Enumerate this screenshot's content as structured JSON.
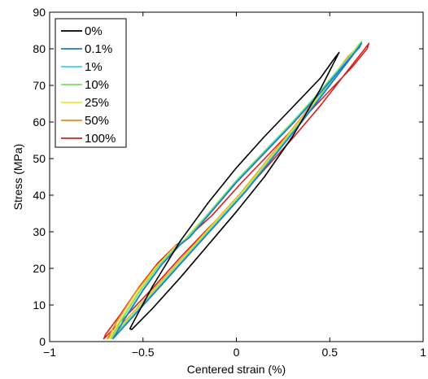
{
  "chart_data": {
    "type": "line",
    "title": "",
    "xlabel": "Centered strain (%)",
    "ylabel": "Stress (MPa)",
    "xlim": [
      -1,
      1
    ],
    "ylim": [
      0,
      90
    ],
    "xticks": [
      -1,
      -0.5,
      0,
      0.5,
      1
    ],
    "xtick_labels": [
      "−1",
      "−0.5",
      "0",
      "0.5",
      "1"
    ],
    "yticks": [
      0,
      10,
      20,
      30,
      40,
      50,
      60,
      70,
      80,
      90
    ],
    "ytick_labels": [
      "0",
      "10",
      "20",
      "30",
      "40",
      "50",
      "60",
      "70",
      "80",
      "90"
    ],
    "grid": false,
    "legend_position": "top-left",
    "series": [
      {
        "name": "0%",
        "color": "#000000",
        "x": [
          -0.56,
          -0.45,
          -0.3,
          -0.15,
          0.0,
          0.15,
          0.3,
          0.45,
          0.54,
          0.55,
          0.52,
          0.45,
          0.3,
          0.15,
          0.0,
          -0.15,
          -0.3,
          -0.45,
          -0.55,
          -0.57,
          -0.56
        ],
        "y": [
          3.3,
          9.0,
          17.5,
          26.5,
          35.5,
          45.0,
          56.0,
          69.0,
          78.0,
          79.0,
          77.0,
          72.0,
          64.0,
          56.0,
          47.5,
          38.0,
          27.5,
          15.0,
          5.5,
          3.5,
          3.3
        ]
      },
      {
        "name": "0.1%",
        "color": "#1f77d4",
        "x": [
          -0.66,
          -0.55,
          -0.4,
          -0.25,
          -0.1,
          0.05,
          0.2,
          0.35,
          0.5,
          0.62,
          0.67,
          0.66,
          0.6,
          0.45,
          0.3,
          0.15,
          0.0,
          -0.15,
          -0.25,
          -0.3,
          -0.4,
          -0.5,
          -0.6,
          -0.66
        ],
        "y": [
          0.8,
          7.0,
          15.5,
          24.0,
          32.5,
          41.0,
          50.5,
          60.0,
          70.0,
          78.0,
          81.5,
          80.5,
          77.0,
          68.0,
          59.5,
          51.5,
          43.5,
          34.5,
          28.5,
          26.5,
          21.0,
          14.0,
          6.0,
          0.8
        ]
      },
      {
        "name": "1%",
        "color": "#34d8e6",
        "x": [
          -0.66,
          -0.55,
          -0.4,
          -0.25,
          -0.1,
          0.05,
          0.2,
          0.35,
          0.5,
          0.62,
          0.67,
          0.66,
          0.6,
          0.45,
          0.3,
          0.15,
          0.0,
          -0.15,
          -0.25,
          -0.3,
          -0.4,
          -0.5,
          -0.6,
          -0.66
        ],
        "y": [
          0.8,
          7.2,
          15.7,
          24.2,
          32.7,
          41.2,
          50.7,
          60.2,
          70.2,
          78.2,
          81.7,
          80.7,
          77.2,
          68.2,
          59.7,
          51.7,
          43.7,
          34.7,
          28.7,
          26.7,
          21.2,
          14.2,
          6.2,
          0.8
        ]
      },
      {
        "name": "10%",
        "color": "#7fe05a",
        "x": [
          -0.67,
          -0.55,
          -0.4,
          -0.25,
          -0.1,
          0.05,
          0.2,
          0.35,
          0.5,
          0.62,
          0.67,
          0.66,
          0.6,
          0.45,
          0.3,
          0.15,
          0.0,
          -0.15,
          -0.27,
          -0.32,
          -0.42,
          -0.52,
          -0.62,
          -0.67
        ],
        "y": [
          0.8,
          7.5,
          16.0,
          24.5,
          33.0,
          41.5,
          51.0,
          60.5,
          70.5,
          78.5,
          82.0,
          81.0,
          77.5,
          68.5,
          60.0,
          52.0,
          44.0,
          35.0,
          28.0,
          26.0,
          20.5,
          13.5,
          5.5,
          0.8
        ]
      },
      {
        "name": "25%",
        "color": "#e8e83a",
        "x": [
          -0.68,
          -0.56,
          -0.41,
          -0.26,
          -0.11,
          0.04,
          0.19,
          0.34,
          0.49,
          0.61,
          0.66,
          0.65,
          0.59,
          0.44,
          0.29,
          0.14,
          -0.01,
          -0.16,
          -0.28,
          -0.33,
          -0.43,
          -0.53,
          -0.63,
          -0.68
        ],
        "y": [
          0.8,
          7.3,
          15.8,
          24.3,
          32.8,
          41.3,
          50.8,
          60.3,
          70.3,
          78.3,
          81.5,
          80.5,
          77.0,
          68.0,
          59.5,
          51.5,
          43.5,
          34.5,
          27.8,
          25.8,
          20.3,
          13.3,
          5.3,
          0.8
        ]
      },
      {
        "name": "50%",
        "color": "#f08a1c",
        "x": [
          -0.69,
          -0.57,
          -0.42,
          -0.27,
          -0.12,
          0.03,
          0.18,
          0.33,
          0.48,
          0.6,
          0.67,
          0.66,
          0.6,
          0.45,
          0.3,
          0.15,
          0.0,
          -0.15,
          -0.28,
          -0.33,
          -0.43,
          -0.54,
          -0.64,
          -0.69
        ],
        "y": [
          0.8,
          7.0,
          15.5,
          24.0,
          32.5,
          41.0,
          50.5,
          60.0,
          70.0,
          78.0,
          81.5,
          80.5,
          77.0,
          68.0,
          59.5,
          51.5,
          43.5,
          34.5,
          27.5,
          25.8,
          20.5,
          13.5,
          5.5,
          0.8
        ]
      },
      {
        "name": "100%",
        "color": "#d42020",
        "x": [
          -0.71,
          -0.6,
          -0.45,
          -0.3,
          -0.15,
          0.0,
          0.15,
          0.3,
          0.45,
          0.58,
          0.68,
          0.71,
          0.7,
          0.62,
          0.47,
          0.32,
          0.17,
          0.02,
          -0.13,
          -0.27,
          -0.32,
          -0.42,
          -0.52,
          -0.62,
          -0.7,
          -0.71
        ],
        "y": [
          0.8,
          6.5,
          14.5,
          23.0,
          31.0,
          38.5,
          47.0,
          55.5,
          64.5,
          73.0,
          79.5,
          81.5,
          80.0,
          75.0,
          67.0,
          59.0,
          51.0,
          43.0,
          34.5,
          28.0,
          26.5,
          21.5,
          15.0,
          7.5,
          2.0,
          0.8
        ]
      }
    ]
  }
}
